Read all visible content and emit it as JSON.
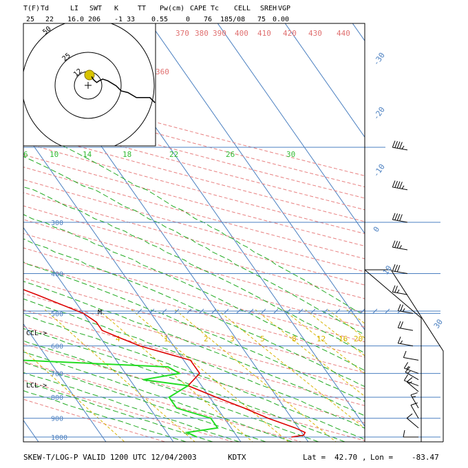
{
  "chart_data": {
    "type": "line",
    "title": "SKEW-T/LOG-P VALID 1200 UTC 12/04/2003",
    "station": "KDTX",
    "location": {
      "lat_label": "Lat =",
      "lat": "42.70",
      "sep": ",",
      "lon_label": "Lon =",
      "lon": "-83.47"
    },
    "indices": {
      "headers": [
        "T(F)",
        "Td",
        "LI",
        "SWT",
        "K",
        "TT",
        "Pw(cm)",
        "CAPE",
        "Tc",
        "CELL",
        "SREH",
        "VGP"
      ],
      "values": [
        "25",
        "22",
        "16.0",
        "206",
        "-1",
        "33",
        "0.55",
        "0",
        "76",
        "185/08",
        "75",
        "0.00"
      ]
    },
    "pressure_levels": [
      "300",
      "400",
      "500",
      "600",
      "700",
      "800",
      "900",
      "1000"
    ],
    "temperature_labels": [
      "-30",
      "-20",
      "-10",
      "0",
      "10",
      "30"
    ],
    "theta_labels": [
      "360",
      "370",
      "380",
      "390",
      "400",
      "410",
      "420",
      "430",
      "440"
    ],
    "mixing_ratio_green": [
      "6",
      "10",
      "14",
      "18",
      "22",
      "26",
      "30"
    ],
    "mixing_ratio_yellow": [
      "4",
      "1",
      "2",
      "3",
      "5",
      "8",
      "12",
      "16",
      "20"
    ],
    "level_markers": [
      "CCL->",
      "LCL->",
      "M"
    ],
    "hodograph_rings": [
      "50",
      "25",
      "12"
    ],
    "series": [
      {
        "name": "Temperature",
        "color": "#dd0000",
        "points": [
          [
            1000,
            -2
          ],
          [
            990,
            0
          ],
          [
            975,
            0.5
          ],
          [
            950,
            -0.5
          ],
          [
            925,
            -2
          ],
          [
            900,
            -3.5
          ],
          [
            850,
            -6
          ],
          [
            800,
            -9
          ],
          [
            750,
            -12
          ],
          [
            700,
            -9
          ],
          [
            650,
            -9
          ],
          [
            600,
            -15
          ],
          [
            575,
            -17
          ],
          [
            550,
            -19
          ],
          [
            525,
            -19
          ],
          [
            500,
            -20
          ],
          [
            450,
            -25
          ],
          [
            400,
            -31
          ],
          [
            350,
            -37
          ],
          [
            300,
            -43
          ],
          [
            250,
            -49
          ],
          [
            220,
            -54
          ],
          [
            200,
            -54
          ],
          [
            180,
            -55
          ],
          [
            150,
            -56
          ],
          [
            125,
            -55
          ],
          [
            100,
            -56
          ]
        ]
      },
      {
        "name": "Dewpoint",
        "color": "#22dd22",
        "points": [
          [
            1000,
            -16
          ],
          [
            975,
            -17
          ],
          [
            950,
            -12
          ],
          [
            900,
            -12
          ],
          [
            850,
            -16
          ],
          [
            800,
            -16
          ],
          [
            750,
            -12
          ],
          [
            725,
            -18
          ],
          [
            700,
            -12
          ],
          [
            675,
            -13
          ],
          [
            650,
            -34
          ],
          [
            625,
            -44
          ],
          [
            600,
            -52
          ],
          [
            575,
            -54
          ],
          [
            550,
            -50
          ],
          [
            525,
            -32
          ],
          [
            500,
            -29
          ],
          [
            475,
            -28
          ],
          [
            450,
            -30
          ],
          [
            400,
            -39
          ],
          [
            350,
            -50
          ],
          [
            320,
            -57
          ],
          [
            300,
            -59
          ],
          [
            270,
            -61
          ],
          [
            250,
            -61
          ]
        ]
      }
    ],
    "wind_barbs": [
      {
        "p": 200,
        "dir": 280,
        "spd": 45
      },
      {
        "p": 250,
        "dir": 280,
        "spd": 45
      },
      {
        "p": 300,
        "dir": 280,
        "spd": 40
      },
      {
        "p": 350,
        "dir": 280,
        "spd": 35
      },
      {
        "p": 400,
        "dir": 280,
        "spd": 30
      },
      {
        "p": 450,
        "dir": 280,
        "spd": 25
      },
      {
        "p": 500,
        "dir": 280,
        "spd": 25
      },
      {
        "p": 550,
        "dir": 280,
        "spd": 20
      },
      {
        "p": 600,
        "dir": 280,
        "spd": 15
      },
      {
        "p": 650,
        "dir": 280,
        "spd": 10
      },
      {
        "p": 700,
        "dir": 290,
        "spd": 15
      },
      {
        "p": 725,
        "dir": 300,
        "spd": 15
      },
      {
        "p": 750,
        "dir": 290,
        "spd": 10
      },
      {
        "p": 775,
        "dir": 310,
        "spd": 15
      },
      {
        "p": 850,
        "dir": 330,
        "spd": 15
      },
      {
        "p": 900,
        "dir": 330,
        "spd": 10
      },
      {
        "p": 950,
        "dir": 310,
        "spd": 10
      },
      {
        "p": 1000,
        "dir": 270,
        "spd": 10
      }
    ],
    "hodograph": [
      [
        -0.5,
        -0.5
      ],
      [
        -1.2,
        -1.8
      ],
      [
        -2,
        -2.8
      ],
      [
        -3.5,
        -4
      ],
      [
        -5,
        -3
      ],
      [
        -7,
        -2
      ],
      [
        -10,
        -3
      ],
      [
        -15,
        -6
      ],
      [
        -18,
        -9
      ],
      [
        -22,
        -10
      ],
      [
        -27,
        -13
      ],
      [
        -35,
        -13
      ],
      [
        -38,
        -16
      ]
    ]
  }
}
